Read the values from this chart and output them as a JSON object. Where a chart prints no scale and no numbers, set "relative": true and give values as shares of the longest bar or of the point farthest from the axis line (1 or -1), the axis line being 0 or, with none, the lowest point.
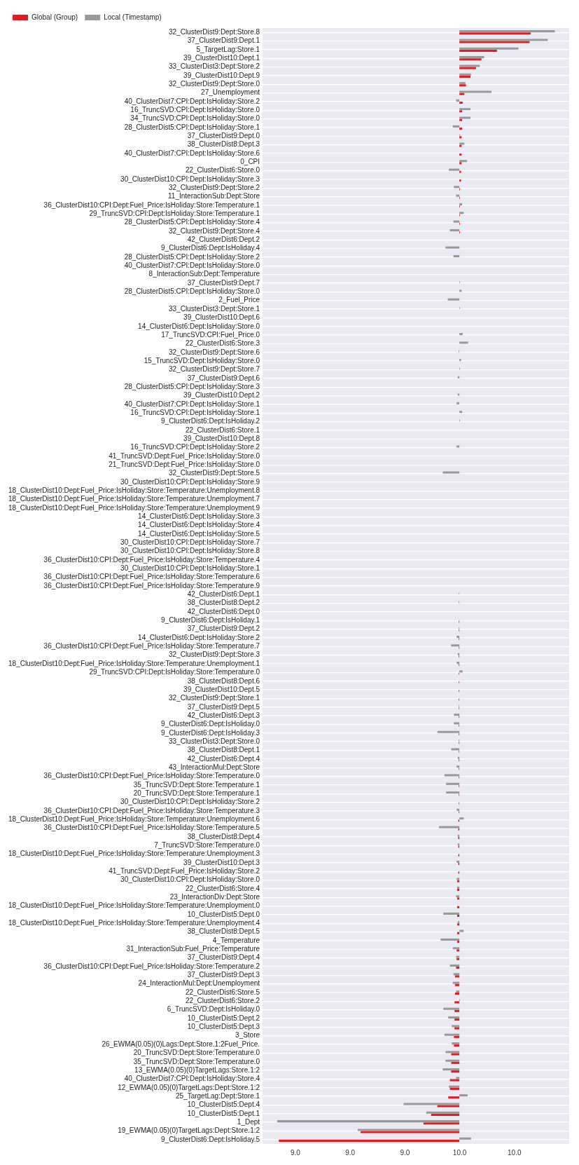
{
  "chart_data": {
    "type": "bar",
    "orientation": "horizontal",
    "legend": "top left",
    "grid": "y",
    "categories": [
      "32_ClusterDist9:Dept:Store.8",
      "37_ClusterDist9:Dept.1",
      "5_TargetLag:Store.1",
      "39_ClusterDist10:Dept.1",
      "33_ClusterDist3:Dept:Store.2",
      "39_ClusterDist10:Dept.9",
      "32_ClusterDist9:Dept:Store.0",
      "27_Unemployment",
      "40_ClusterDist7:CPI:Dept:IsHoliday:Store.2",
      "16_TruncSVD:CPI:Dept:IsHoliday:Store.0",
      "34_TruncSVD:CPI:Dept:IsHoliday:Store.0",
      "28_ClusterDist5:CPI:Dept:IsHoliday:Store.1",
      "37_ClusterDist9:Dept.0",
      "38_ClusterDist8:Dept.3",
      "40_ClusterDist7:CPI:Dept:IsHoliday:Store.6",
      "0_CPI",
      "22_ClusterDist6:Store.0",
      "30_ClusterDist10:CPI:Dept:IsHoliday:Store.3",
      "32_ClusterDist9:Dept:Store.2",
      "11_InteractionSub:Dept:Store",
      "36_ClusterDist10:CPI:Dept:Fuel_Price:IsHoliday:Store:Temperature.1",
      "29_TruncSVD:CPI:Dept:IsHoliday:Store:Temperature.1",
      "28_ClusterDist5:CPI:Dept:IsHoliday:Store.4",
      "32_ClusterDist9:Dept:Store.4",
      "42_ClusterDist6:Dept.2",
      "9_ClusterDist6:Dept:IsHoliday.4",
      "28_ClusterDist5:CPI:Dept:IsHoliday:Store.2",
      "40_ClusterDist7:CPI:Dept:IsHoliday:Store.0",
      "8_InteractionSub:Dept:Temperature",
      "37_ClusterDist9:Dept.7",
      "28_ClusterDist5:CPI:Dept:IsHoliday:Store.0",
      "2_Fuel_Price",
      "33_ClusterDist3:Dept:Store.1",
      "39_ClusterDist10:Dept.6",
      "14_ClusterDist6:Dept:IsHoliday:Store.0",
      "17_TruncSVD:CPI:Fuel_Price.0",
      "22_ClusterDist6:Store.3",
      "32_ClusterDist9:Dept:Store.6",
      "15_TruncSVD:Dept:IsHoliday:Store.0",
      "32_ClusterDist9:Dept:Store.7",
      "37_ClusterDist9:Dept.6",
      "28_ClusterDist5:CPI:Dept:IsHoliday:Store.3",
      "39_ClusterDist10:Dept.2",
      "40_ClusterDist7:CPI:Dept:IsHoliday:Store.1",
      "16_TruncSVD:CPI:Dept:IsHoliday:Store.1",
      "9_ClusterDist6:Dept:IsHoliday.2",
      "22_ClusterDist6:Store.1",
      "39_ClusterDist10:Dept.8",
      "16_TruncSVD:CPI:Dept:IsHoliday:Store.2",
      "41_TruncSVD:Dept:Fuel_Price:IsHoliday:Store.0",
      "21_TruncSVD:Dept:Fuel_Price:IsHoliday:Store.0",
      "32_ClusterDist9:Dept:Store.5",
      "30_ClusterDist10:CPI:Dept:IsHoliday:Store.9",
      "18_ClusterDist10:Dept:Fuel_Price:IsHoliday:Store:Temperature:Unemployment.8",
      "18_ClusterDist10:Dept:Fuel_Price:IsHoliday:Store:Temperature:Unemployment.7",
      "18_ClusterDist10:Dept:Fuel_Price:IsHoliday:Store:Temperature:Unemployment.9",
      "14_ClusterDist6:Dept:IsHoliday:Store.3",
      "14_ClusterDist6:Dept:IsHoliday:Store.4",
      "14_ClusterDist6:Dept:IsHoliday:Store.5",
      "30_ClusterDist10:CPI:Dept:IsHoliday:Store.7",
      "30_ClusterDist10:CPI:Dept:IsHoliday:Store.8",
      "36_ClusterDist10:CPI:Dept:Fuel_Price:IsHoliday:Store:Temperature.4",
      "30_ClusterDist10:CPI:Dept:IsHoliday:Store.1",
      "36_ClusterDist10:CPI:Dept:Fuel_Price:IsHoliday:Store:Temperature.6",
      "36_ClusterDist10:CPI:Dept:Fuel_Price:IsHoliday:Store:Temperature.9",
      "42_ClusterDist6:Dept.1",
      "38_ClusterDist8:Dept.2",
      "42_ClusterDist6:Dept.0",
      "9_ClusterDist6:Dept:IsHoliday.1",
      "37_ClusterDist9:Dept.2",
      "14_ClusterDist6:Dept:IsHoliday:Store.2",
      "36_ClusterDist10:CPI:Dept:Fuel_Price:IsHoliday:Store:Temperature.7",
      "32_ClusterDist9:Dept:Store.3",
      "18_ClusterDist10:Dept:Fuel_Price:IsHoliday:Store:Temperature:Unemployment.1",
      "29_TruncSVD:CPI:Dept:IsHoliday:Store:Temperature.0",
      "38_ClusterDist8:Dept.6",
      "39_ClusterDist10:Dept.5",
      "32_ClusterDist9:Dept:Store.1",
      "37_ClusterDist9:Dept.5",
      "42_ClusterDist6:Dept.3",
      "9_ClusterDist6:Dept:IsHoliday.0",
      "9_ClusterDist6:Dept:IsHoliday.3",
      "33_ClusterDist3:Dept:Store.0",
      "38_ClusterDist8:Dept.1",
      "42_ClusterDist6:Dept.4",
      "43_InteractionMul:Dept:Store",
      "36_ClusterDist10:CPI:Dept:Fuel_Price:IsHoliday:Store:Temperature.0",
      "35_TruncSVD:Dept:Store:Temperature.1",
      "20_TruncSVD:Dept:Store:Temperature.1",
      "30_ClusterDist10:CPI:Dept:IsHoliday:Store.2",
      "36_ClusterDist10:CPI:Dept:Fuel_Price:IsHoliday:Store:Temperature.3",
      "18_ClusterDist10:Dept:Fuel_Price:IsHoliday:Store:Temperature:Unemployment.6",
      "36_ClusterDist10:CPI:Dept:Fuel_Price:IsHoliday:Store:Temperature.5",
      "38_ClusterDist8:Dept.4",
      "7_TruncSVD:Store:Temperature.0",
      "18_ClusterDist10:Dept:Fuel_Price:IsHoliday:Store:Temperature:Unemployment.3",
      "39_ClusterDist10:Dept.3",
      "41_TruncSVD:Dept:Fuel_Price:IsHoliday:Store.2",
      "30_ClusterDist10:CPI:Dept:IsHoliday:Store.0",
      "22_ClusterDist6:Store.4",
      "23_InteractionDiv:Dept:Store",
      "18_ClusterDist10:Dept:Fuel_Price:IsHoliday:Store:Temperature:Unemployment.0",
      "10_ClusterDist5:Dept.0",
      "18_ClusterDist10:Dept:Fuel_Price:IsHoliday:Store:Temperature:Unemployment.4",
      "38_ClusterDist8:Dept.5",
      "4_Temperature",
      "31_InteractionSub:Fuel_Price:Temperature",
      "37_ClusterDist9:Dept.4",
      "36_ClusterDist10:CPI:Dept:Fuel_Price:IsHoliday:Store:Temperature.2",
      "37_ClusterDist9:Dept.3",
      "24_InteractionMul:Dept:Unemployment",
      "22_ClusterDist6:Store.5",
      "22_ClusterDist6:Store.2",
      "6_TruncSVD:Dept:IsHoliday.0",
      "10_ClusterDist5:Dept.2",
      "10_ClusterDist5:Dept.3",
      "3_Store",
      "26_EWMA(0.05)(0)Lags:Dept:Store.1:2Fuel_Price.",
      "20_TruncSVD:Dept:Store:Temperature.0",
      "35_TruncSVD:Dept:Store:Temperature.0",
      "13_EWMA(0.05)(0)TargetLags:Store.1:2",
      "40_ClusterDist7:CPI:Dept:IsHoliday:Store.4",
      "12_EWMA(0.05)(0)TargetLags:Dept:Store.1:2",
      "25_TargetLag:Dept:Store.1",
      "10_ClusterDist5:Dept.4",
      "10_ClusterDist5:Dept.1",
      "1_Dept",
      "19_EWMA(0.05)(0)TargetLags:Dept:Store.1:2",
      "9_ClusterDist6:Dept:IsHoliday.5"
    ],
    "relative": true,
    "series": [
      {
        "name": "Global (Group)",
        "color": "#e8191f",
        "values": [
          0.391,
          0.385,
          0.206,
          0.121,
          0.091,
          0.061,
          0.036,
          0.027,
          0.018,
          0.015,
          0.015,
          0.015,
          0.012,
          0.012,
          0.012,
          0.012,
          0.009,
          0.009,
          0.003,
          0.003,
          0.003,
          0.003,
          0.003,
          0.003,
          0,
          0,
          0,
          0,
          0,
          0,
          0,
          0,
          0,
          0,
          0,
          0,
          0,
          0,
          0,
          0,
          0,
          0,
          0,
          0,
          0,
          0,
          0,
          0,
          0,
          0,
          0,
          0,
          0,
          0,
          0,
          0,
          0,
          0,
          0,
          0,
          0,
          0,
          0,
          0,
          0,
          0,
          0,
          0,
          -0.003,
          -0.003,
          -0.003,
          -0.003,
          -0.003,
          -0.003,
          -0.003,
          -0.003,
          -0.003,
          -0.003,
          -0.003,
          -0.003,
          -0.003,
          -0.003,
          -0.003,
          -0.003,
          -0.003,
          -0.003,
          -0.003,
          -0.003,
          -0.003,
          -0.003,
          -0.003,
          -0.006,
          -0.006,
          -0.006,
          -0.006,
          -0.006,
          -0.006,
          -0.006,
          -0.012,
          -0.012,
          -0.012,
          -0.012,
          -0.012,
          -0.012,
          -0.012,
          -0.012,
          -0.015,
          -0.015,
          -0.018,
          -0.024,
          -0.024,
          -0.024,
          -0.027,
          -0.027,
          -0.027,
          -0.027,
          -0.03,
          -0.03,
          -0.045,
          -0.045,
          -0.045,
          -0.052,
          -0.052,
          -0.061,
          -0.121,
          -0.155,
          -0.197,
          -0.542,
          -0.991
        ]
      },
      {
        "name": "Local (Timestamp)",
        "color": "#999999",
        "values": [
          0.524,
          0.485,
          0.324,
          0.136,
          0.112,
          0.064,
          0.033,
          0.176,
          -0.018,
          0.061,
          0.061,
          -0.036,
          0.003,
          0.027,
          0,
          0.042,
          -0.058,
          0,
          -0.03,
          -0.018,
          0.015,
          0.024,
          -0.033,
          -0.052,
          0,
          -0.076,
          -0.033,
          0,
          0,
          0.003,
          0.012,
          -0.064,
          0.003,
          0,
          0,
          0.018,
          0.048,
          -0.003,
          0.009,
          0.003,
          -0.009,
          0,
          -0.009,
          -0.015,
          0.015,
          0.003,
          0,
          0,
          -0.015,
          0,
          0,
          -0.091,
          0,
          0,
          0,
          0,
          0,
          0,
          0,
          0,
          0,
          0,
          0,
          0,
          0,
          -0.003,
          -0.003,
          0,
          0,
          -0.003,
          -0.015,
          -0.045,
          -0.009,
          -0.015,
          0.018,
          0,
          0,
          0,
          -0.003,
          -0.03,
          -0.03,
          -0.121,
          -0.003,
          -0.045,
          -0.009,
          -0.015,
          -0.082,
          -0.073,
          -0.073,
          0,
          -0.015,
          0.024,
          -0.112,
          -0.009,
          -0.009,
          0,
          -0.015,
          0,
          -0.015,
          -0.012,
          -0.018,
          0,
          -0.088,
          -0.009,
          0.024,
          -0.103,
          -0.036,
          -0.018,
          -0.052,
          -0.033,
          -0.036,
          -0.018,
          0.003,
          -0.088,
          -0.061,
          -0.042,
          -0.082,
          -0.042,
          -0.076,
          -0.076,
          -0.091,
          -0.018,
          -0.058,
          0.045,
          -0.306,
          -0.182,
          -1,
          -0.558,
          0.064
        ]
      }
    ],
    "annotations": [
      "9.0",
      "9.0",
      "9.0",
      "10.0",
      "10.0"
    ]
  }
}
